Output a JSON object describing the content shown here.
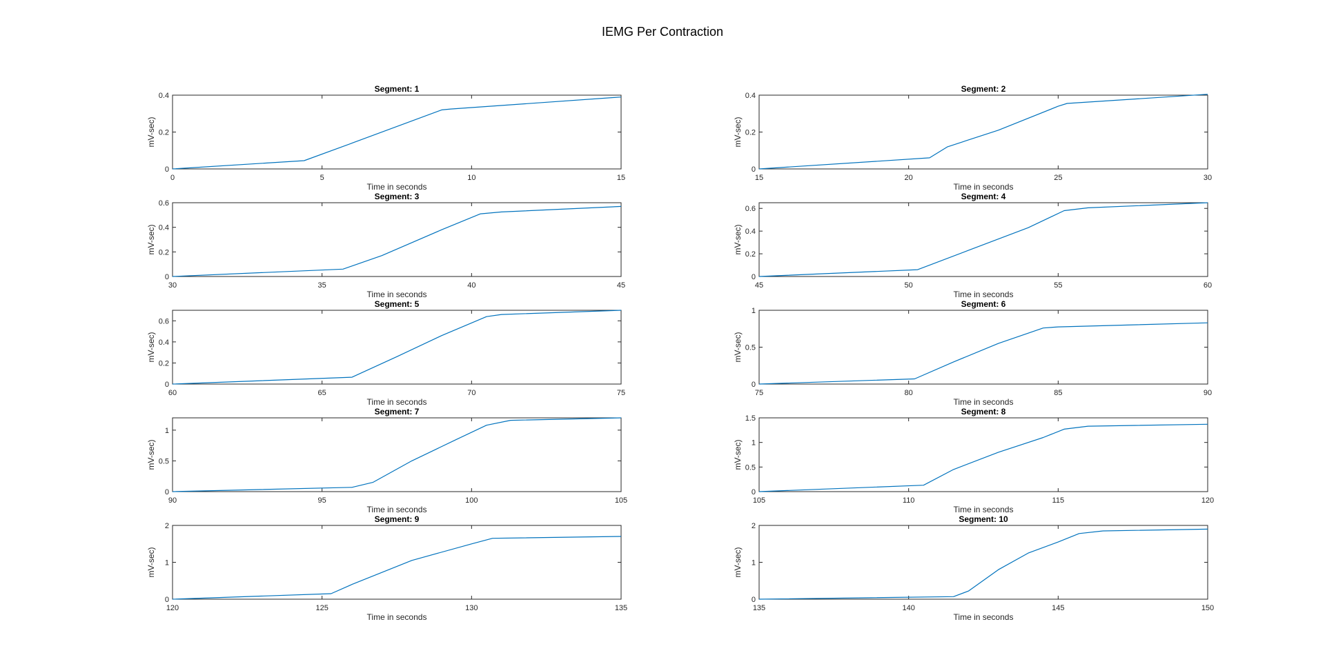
{
  "figure": {
    "title": "IEMG Per Contraction"
  },
  "colors": {
    "line": "#0072BD",
    "axis": "#262626",
    "background": "#ffffff"
  },
  "chart_data": [
    {
      "type": "line",
      "title": "Segment: 1",
      "xlabel": "Time in seconds",
      "ylabel": "mV-sec)",
      "xlim": [
        0,
        15
      ],
      "ylim": [
        0,
        0.4
      ],
      "xticks": [
        0,
        5,
        10,
        15
      ],
      "yticks": [
        0,
        0.2,
        0.4
      ],
      "series": [
        {
          "x": [
            0,
            4.4,
            6,
            8,
            9,
            9.3,
            15
          ],
          "y": [
            0,
            0.045,
            0.14,
            0.26,
            0.32,
            0.325,
            0.39
          ]
        }
      ]
    },
    {
      "type": "line",
      "title": "Segment: 2",
      "xlabel": "Time in seconds",
      "ylabel": "mV-sec)",
      "xlim": [
        15,
        30
      ],
      "ylim": [
        0,
        0.4
      ],
      "xticks": [
        15,
        20,
        25,
        30
      ],
      "yticks": [
        0,
        0.2,
        0.4
      ],
      "series": [
        {
          "x": [
            15,
            20.7,
            21.3,
            23,
            25,
            25.3,
            30
          ],
          "y": [
            0,
            0.06,
            0.12,
            0.21,
            0.34,
            0.355,
            0.405
          ]
        }
      ]
    },
    {
      "type": "line",
      "title": "Segment: 3",
      "xlabel": "Time in seconds",
      "ylabel": "mV-sec)",
      "xlim": [
        30,
        45
      ],
      "ylim": [
        0,
        0.6
      ],
      "xticks": [
        30,
        35,
        40,
        45
      ],
      "yticks": [
        0,
        0.2,
        0.4,
        0.6
      ],
      "series": [
        {
          "x": [
            30,
            35.7,
            37,
            39,
            40.3,
            41,
            45
          ],
          "y": [
            0,
            0.06,
            0.17,
            0.38,
            0.51,
            0.525,
            0.57
          ]
        }
      ]
    },
    {
      "type": "line",
      "title": "Segment: 4",
      "xlabel": "Time in seconds",
      "ylabel": "mV-sec)",
      "xlim": [
        45,
        60
      ],
      "ylim": [
        0,
        0.65
      ],
      "xticks": [
        45,
        50,
        55,
        60
      ],
      "yticks": [
        0,
        0.2,
        0.4,
        0.6
      ],
      "series": [
        {
          "x": [
            45,
            50.3,
            52,
            54,
            55.2,
            56,
            60
          ],
          "y": [
            0,
            0.06,
            0.23,
            0.43,
            0.58,
            0.605,
            0.65
          ]
        }
      ]
    },
    {
      "type": "line",
      "title": "Segment: 5",
      "xlabel": "Time in seconds",
      "ylabel": "mV-sec)",
      "xlim": [
        60,
        75
      ],
      "ylim": [
        0,
        0.7
      ],
      "xticks": [
        60,
        65,
        70,
        75
      ],
      "yticks": [
        0,
        0.2,
        0.4,
        0.6
      ],
      "series": [
        {
          "x": [
            60,
            66,
            67.5,
            69,
            70.5,
            71,
            75
          ],
          "y": [
            0,
            0.065,
            0.26,
            0.46,
            0.64,
            0.66,
            0.7
          ]
        }
      ]
    },
    {
      "type": "line",
      "title": "Segment: 6",
      "xlabel": "Time in seconds",
      "ylabel": "mV-sec)",
      "xlim": [
        75,
        90
      ],
      "ylim": [
        0,
        1
      ],
      "xticks": [
        75,
        80,
        85,
        90
      ],
      "yticks": [
        0,
        0.5,
        1
      ],
      "series": [
        {
          "x": [
            75,
            80.2,
            81.5,
            83,
            84.5,
            85,
            90
          ],
          "y": [
            0,
            0.07,
            0.3,
            0.55,
            0.76,
            0.775,
            0.83
          ]
        }
      ]
    },
    {
      "type": "line",
      "title": "Segment: 7",
      "xlabel": "Time in seconds",
      "ylabel": "mV-sec)",
      "xlim": [
        90,
        105
      ],
      "ylim": [
        0,
        1.2
      ],
      "xticks": [
        90,
        95,
        100,
        105
      ],
      "yticks": [
        0,
        0.5,
        1
      ],
      "series": [
        {
          "x": [
            90,
            96,
            96.7,
            98,
            99.5,
            100.5,
            101.3,
            105
          ],
          "y": [
            0,
            0.07,
            0.15,
            0.5,
            0.85,
            1.08,
            1.16,
            1.2
          ]
        }
      ]
    },
    {
      "type": "line",
      "title": "Segment: 8",
      "xlabel": "Time in seconds",
      "ylabel": "mV-sec)",
      "xlim": [
        105,
        120
      ],
      "ylim": [
        0,
        1.5
      ],
      "xticks": [
        105,
        110,
        115,
        120
      ],
      "yticks": [
        0,
        0.5,
        1,
        1.5
      ],
      "series": [
        {
          "x": [
            105,
            110.5,
            111.5,
            113,
            114.5,
            115.2,
            116,
            120
          ],
          "y": [
            0,
            0.13,
            0.45,
            0.8,
            1.1,
            1.27,
            1.33,
            1.37
          ]
        }
      ]
    },
    {
      "type": "line",
      "title": "Segment: 9",
      "xlabel": "Time in seconds",
      "ylabel": "mV-sec)",
      "xlim": [
        120,
        135
      ],
      "ylim": [
        0,
        2
      ],
      "xticks": [
        120,
        125,
        130,
        135
      ],
      "yticks": [
        0,
        1,
        2
      ],
      "series": [
        {
          "x": [
            120,
            125.3,
            126,
            128,
            130,
            130.7,
            135
          ],
          "y": [
            0,
            0.15,
            0.4,
            1.05,
            1.5,
            1.65,
            1.7
          ]
        }
      ]
    },
    {
      "type": "line",
      "title": "Segment: 10",
      "xlabel": "Time in seconds",
      "ylabel": "mV-sec)",
      "xlim": [
        135,
        150
      ],
      "ylim": [
        0,
        2
      ],
      "xticks": [
        135,
        140,
        145,
        150
      ],
      "yticks": [
        0,
        1,
        2
      ],
      "series": [
        {
          "x": [
            135,
            141.5,
            142,
            143,
            144,
            145,
            145.7,
            146.5,
            150
          ],
          "y": [
            0,
            0.07,
            0.22,
            0.8,
            1.25,
            1.55,
            1.78,
            1.85,
            1.9
          ]
        }
      ]
    }
  ]
}
